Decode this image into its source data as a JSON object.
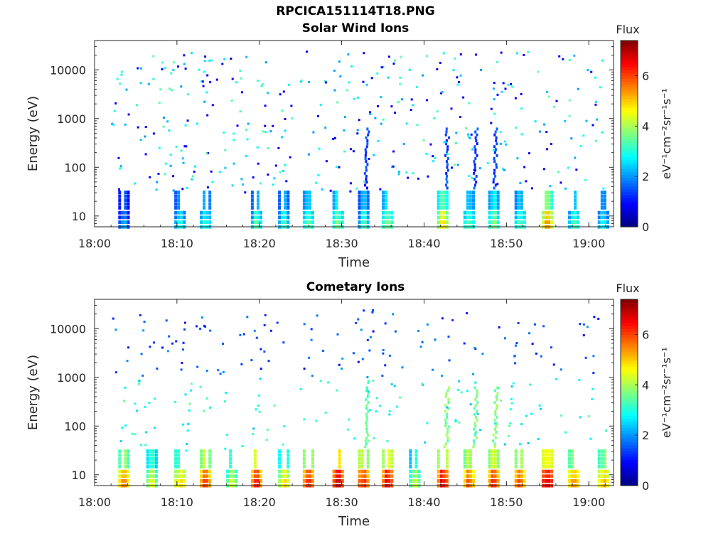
{
  "figure_title": "RPCICA151114T18.PNG",
  "colorbar": {
    "title": "Flux",
    "label": "eV⁻¹cm⁻²sr⁻¹s⁻¹",
    "ticks": [
      0,
      2,
      4,
      6
    ],
    "range": [
      0,
      7.4
    ],
    "colormap": "jet"
  },
  "chart_data": [
    {
      "type": "heatmap",
      "title": "Solar Wind Ions",
      "xlabel": "Time",
      "ylabel": "Energy (eV)",
      "x_ticks": [
        "18:00",
        "18:10",
        "18:20",
        "18:30",
        "18:40",
        "18:50",
        "19:00"
      ],
      "x_range_minutes": [
        0,
        63
      ],
      "y_scale": "log",
      "y_ticks": [
        10,
        100,
        1000,
        10000
      ],
      "y_range": [
        6,
        40000
      ],
      "z_range": [
        0,
        7.4
      ],
      "bursts": [
        {
          "t": 3.4,
          "flux": 2.6
        },
        {
          "t": 10.2,
          "flux": 3.2
        },
        {
          "t": 13.3,
          "flux": 3.4
        },
        {
          "t": 19.5,
          "flux": 3.6
        },
        {
          "t": 22.8,
          "flux": 3.5
        },
        {
          "t": 25.8,
          "flux": 3.9
        },
        {
          "t": 29.4,
          "flux": 4.0
        },
        {
          "t": 32.5,
          "flux": 3.4
        },
        {
          "t": 35.4,
          "flux": 4.1
        },
        {
          "t": 42.1,
          "flux": 4.9
        },
        {
          "t": 45.3,
          "flux": 3.8
        },
        {
          "t": 48.3,
          "flux": 4.2
        },
        {
          "t": 51.5,
          "flux": 3.7
        },
        {
          "t": 54.8,
          "flux": 5.6
        },
        {
          "t": 58.0,
          "flux": 3.7
        },
        {
          "t": 61.6,
          "flux": 3.3
        }
      ],
      "dispersion_features": [
        {
          "t": 32.6,
          "flux": 0.9
        },
        {
          "t": 42.3,
          "flux": 1.0
        },
        {
          "t": 45.8,
          "flux": 1.0
        },
        {
          "t": 48.2,
          "flux": 0.9
        }
      ]
    },
    {
      "type": "heatmap",
      "title": "Cometary Ions",
      "xlabel": "Time",
      "ylabel": "Energy (eV)",
      "x_ticks": [
        "18:00",
        "18:10",
        "18:20",
        "18:30",
        "18:40",
        "18:50",
        "19:00"
      ],
      "x_range_minutes": [
        0,
        63
      ],
      "y_scale": "log",
      "y_ticks": [
        10,
        100,
        1000,
        10000
      ],
      "y_range": [
        6,
        40000
      ],
      "z_range": [
        0,
        7.4
      ],
      "bursts": [
        {
          "t": 3.4,
          "flux": 5.8
        },
        {
          "t": 6.8,
          "flux": 4.6
        },
        {
          "t": 10.2,
          "flux": 5.2
        },
        {
          "t": 13.3,
          "flux": 6.3
        },
        {
          "t": 16.5,
          "flux": 4.6
        },
        {
          "t": 19.5,
          "flux": 6.6
        },
        {
          "t": 22.8,
          "flux": 5.2
        },
        {
          "t": 25.8,
          "flux": 6.6
        },
        {
          "t": 29.4,
          "flux": 7.0
        },
        {
          "t": 32.5,
          "flux": 6.6
        },
        {
          "t": 35.4,
          "flux": 6.9
        },
        {
          "t": 38.7,
          "flux": 4.6
        },
        {
          "t": 42.1,
          "flux": 6.9
        },
        {
          "t": 45.3,
          "flux": 6.2
        },
        {
          "t": 48.3,
          "flux": 6.5
        },
        {
          "t": 51.5,
          "flux": 6.2
        },
        {
          "t": 54.8,
          "flux": 7.1
        },
        {
          "t": 58.0,
          "flux": 5.9
        },
        {
          "t": 61.6,
          "flux": 5.4
        }
      ],
      "dispersion_features": [
        {
          "t": 32.6,
          "flux": 3.0
        },
        {
          "t": 42.3,
          "flux": 3.3
        },
        {
          "t": 45.8,
          "flux": 3.2
        },
        {
          "t": 48.2,
          "flux": 3.4
        }
      ]
    }
  ]
}
